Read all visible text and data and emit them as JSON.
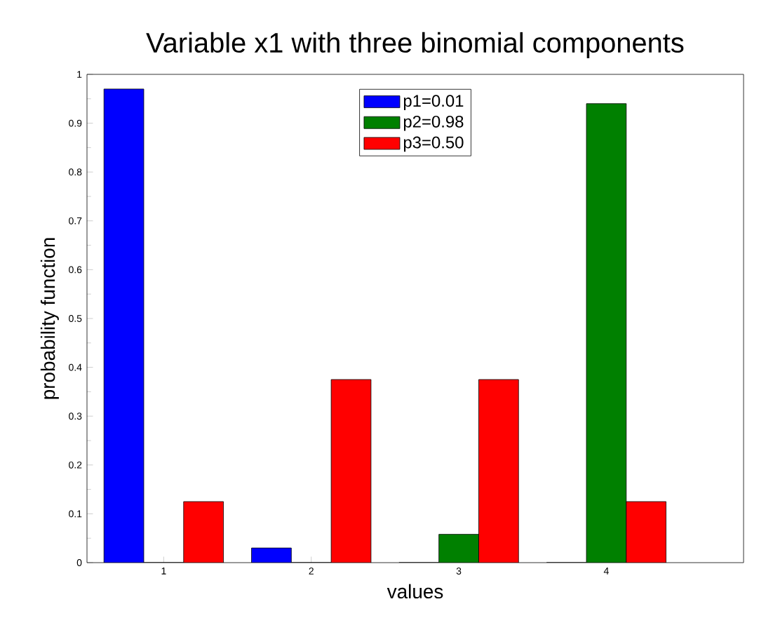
{
  "chart_data": {
    "type": "bar",
    "title": "Variable x1 with three binomial components",
    "xlabel": "values",
    "ylabel": "probability function",
    "categories": [
      "1",
      "2",
      "3",
      "4"
    ],
    "series": [
      {
        "name": "p1=0.01",
        "color": "#0000ff",
        "values": [
          0.97,
          0.03,
          0,
          0
        ]
      },
      {
        "name": "p2=0.98",
        "color": "#008000",
        "values": [
          0,
          0,
          0.058,
          0.94
        ]
      },
      {
        "name": "p3=0.50",
        "color": "#ff0000",
        "values": [
          0.125,
          0.375,
          0.375,
          0.125
        ]
      }
    ],
    "ylim": [
      0,
      1
    ],
    "yticks": [
      0,
      0.1,
      0.2,
      0.3,
      0.4,
      0.5,
      0.6,
      0.7,
      0.8,
      0.9,
      1
    ],
    "grid": false,
    "legend": "top"
  }
}
